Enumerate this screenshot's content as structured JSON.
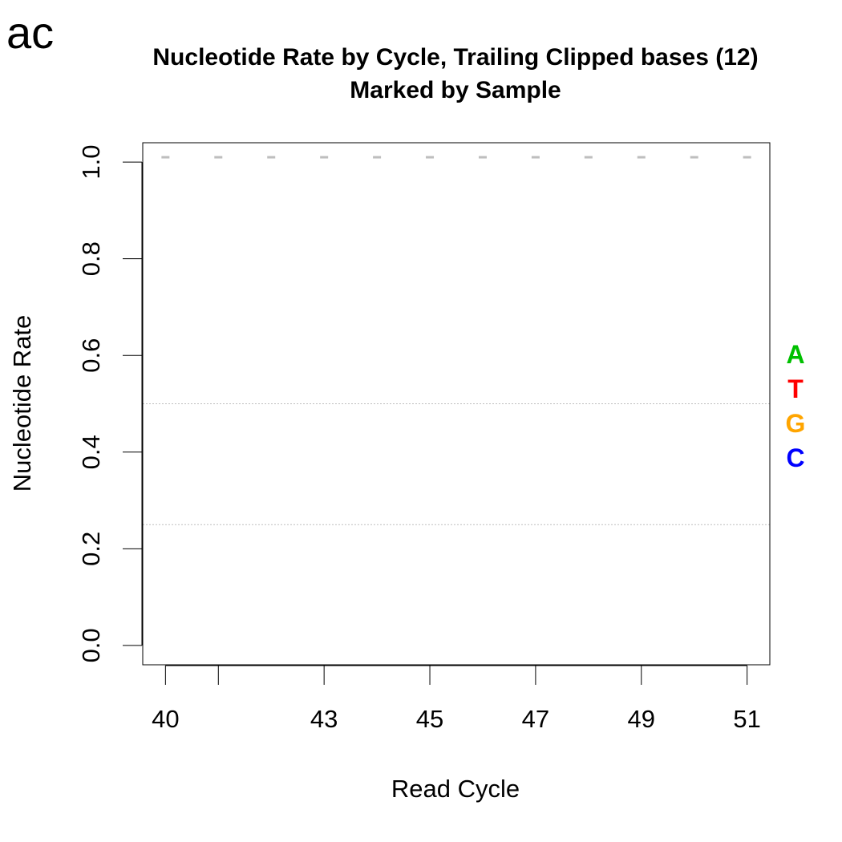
{
  "panel_tag": "ac",
  "colors": {
    "A": "#00c000",
    "T": "#ff0000",
    "G": "#ffa500",
    "C": "#0000ff",
    "line": "#bebebe",
    "ref": "#bebebe"
  },
  "chart_data": {
    "type": "line",
    "title": "Nucleotide Rate by Cycle, Trailing Clipped bases (12)",
    "subtitle": "Marked by Sample",
    "xlabel": "Read Cycle",
    "ylabel": "Nucleotide Rate",
    "xlim": [
      39.57,
      51.43
    ],
    "ylim": [
      -0.04,
      1.04
    ],
    "x_ticks": [
      40,
      41,
      43,
      45,
      47,
      49,
      51
    ],
    "x_tick_labels": [
      "40",
      "",
      "43",
      "45",
      "47",
      "49",
      "51"
    ],
    "y_ticks": [
      0.0,
      0.2,
      0.4,
      0.6,
      0.8,
      1.0
    ],
    "y_tick_labels": [
      "0.0",
      "0.2",
      "0.4",
      "0.6",
      "0.8",
      "1.0"
    ],
    "reference_lines": [
      0.25,
      0.5
    ],
    "x": [
      40,
      41,
      42,
      43,
      44,
      45,
      46,
      47,
      48,
      49,
      50,
      51
    ],
    "series": [
      {
        "values": [
          1.01,
          1.01,
          1.01,
          1.01,
          1.01,
          1.01,
          1.01,
          1.01,
          1.01,
          1.01,
          1.01,
          1.01
        ],
        "style": "dash-marker"
      }
    ],
    "legend": {
      "position": "right",
      "entries": [
        "A",
        "T",
        "G",
        "C"
      ]
    },
    "grid": false
  }
}
